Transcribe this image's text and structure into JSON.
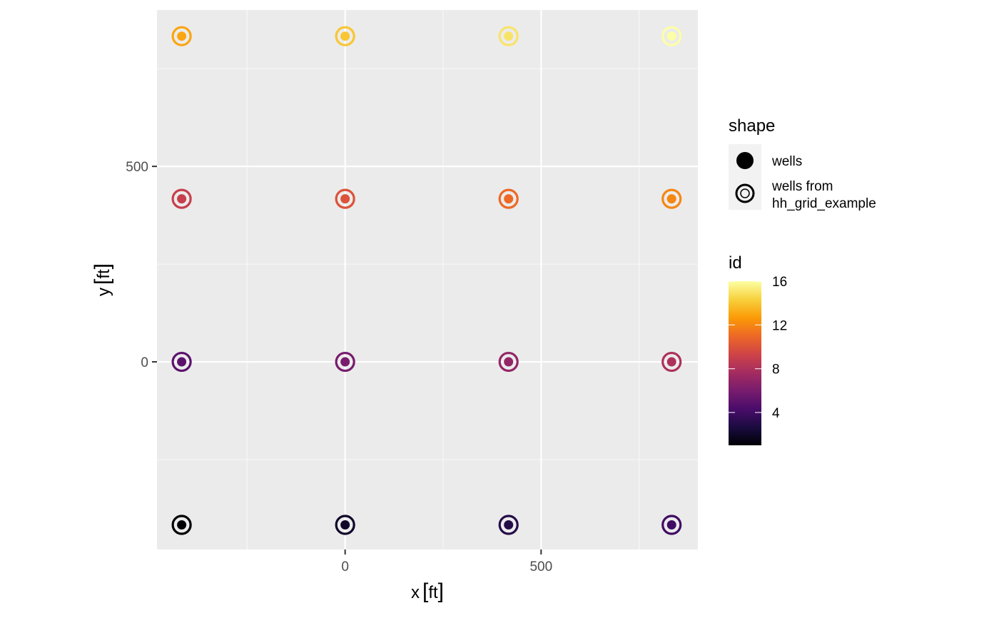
{
  "chart_data": {
    "type": "scatter",
    "xlabel": "x",
    "xlabel_unit": "ft",
    "ylabel": "y",
    "ylabel_unit": "ft",
    "xlim": [
      -480,
      900
    ],
    "ylim": [
      -480,
      900
    ],
    "x_ticks": [
      0,
      500
    ],
    "y_ticks": [
      0,
      500
    ],
    "x_tick_labels": [
      "0",
      "500"
    ],
    "y_tick_labels": [
      "0",
      "500"
    ],
    "grid": true,
    "coordinate_equal": true,
    "series": [
      {
        "name": "wells",
        "marker": "filled-circle",
        "points": [
          {
            "id": 1,
            "x": -417,
            "y": -417
          },
          {
            "id": 2,
            "x": 0,
            "y": -417
          },
          {
            "id": 3,
            "x": 417,
            "y": -417
          },
          {
            "id": 4,
            "x": 833,
            "y": -417
          },
          {
            "id": 5,
            "x": -417,
            "y": 0
          },
          {
            "id": 6,
            "x": 0,
            "y": 0
          },
          {
            "id": 7,
            "x": 417,
            "y": 0
          },
          {
            "id": 8,
            "x": 833,
            "y": 0
          },
          {
            "id": 9,
            "x": -417,
            "y": 417
          },
          {
            "id": 10,
            "x": 0,
            "y": 417
          },
          {
            "id": 11,
            "x": 417,
            "y": 417
          },
          {
            "id": 12,
            "x": 833,
            "y": 417
          },
          {
            "id": 13,
            "x": -417,
            "y": 833
          },
          {
            "id": 14,
            "x": 0,
            "y": 833
          },
          {
            "id": 15,
            "x": 417,
            "y": 833
          },
          {
            "id": 16,
            "x": 833,
            "y": 833
          }
        ]
      },
      {
        "name": "wells from hh_grid_example",
        "marker": "open-circle",
        "points": [
          {
            "id": 1,
            "x": -417,
            "y": -417
          },
          {
            "id": 2,
            "x": 0,
            "y": -417
          },
          {
            "id": 3,
            "x": 417,
            "y": -417
          },
          {
            "id": 4,
            "x": 833,
            "y": -417
          },
          {
            "id": 5,
            "x": -417,
            "y": 0
          },
          {
            "id": 6,
            "x": 0,
            "y": 0
          },
          {
            "id": 7,
            "x": 417,
            "y": 0
          },
          {
            "id": 8,
            "x": 833,
            "y": 0
          },
          {
            "id": 9,
            "x": -417,
            "y": 417
          },
          {
            "id": 10,
            "x": 0,
            "y": 417
          },
          {
            "id": 11,
            "x": 417,
            "y": 417
          },
          {
            "id": 12,
            "x": 833,
            "y": 417
          },
          {
            "id": 13,
            "x": -417,
            "y": 833
          },
          {
            "id": 14,
            "x": 0,
            "y": 833
          },
          {
            "id": 15,
            "x": 417,
            "y": 833
          },
          {
            "id": 16,
            "x": 833,
            "y": 833
          }
        ]
      }
    ],
    "legend": {
      "placement": "right",
      "shape": {
        "title": "shape",
        "entries": [
          {
            "label": "wells",
            "marker": "filled-circle"
          },
          {
            "label_lines": [
              "wells from",
              "hh_grid_example"
            ],
            "marker": "open-circle"
          }
        ]
      },
      "color": {
        "title": "id",
        "palette": "inferno",
        "range": [
          1,
          16
        ],
        "ticks": [
          4,
          8,
          12,
          16
        ],
        "tick_labels": [
          "4",
          "8",
          "12",
          "16"
        ]
      }
    }
  },
  "colors": {
    "panel_background": "#ebebeb",
    "grid_major": "#ffffff",
    "grid_minor": "#f7f7f7",
    "inferno_stops": [
      "#000004",
      "#1b0c41",
      "#4a0c6b",
      "#781c6d",
      "#a52c60",
      "#cf4446",
      "#ed6925",
      "#fb9b06",
      "#f7d13d",
      "#fcffa4"
    ]
  }
}
